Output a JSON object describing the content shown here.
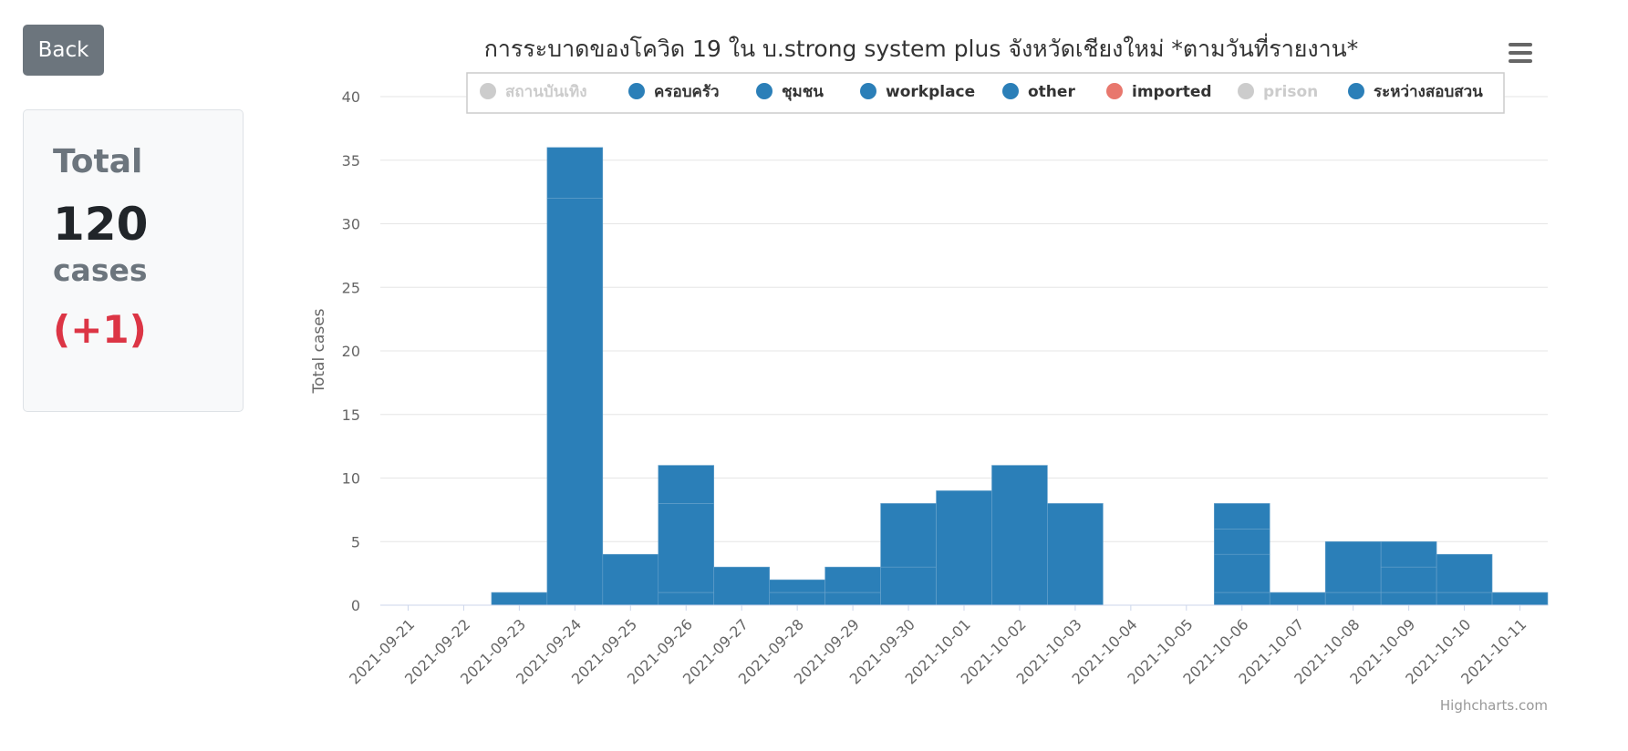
{
  "back_label": "Back",
  "summary": {
    "label": "Total",
    "count": "120",
    "unit": "cases",
    "delta": "(+1)"
  },
  "credit": "Highcharts.com",
  "chart_data": {
    "type": "bar",
    "stacked": true,
    "title": "การระบาดของโควิด 19 ใน บ.strong system plus จังหวัดเชียงใหม่ *ตามวันที่รายงาน*",
    "ylabel": "Total cases",
    "xlabel": "",
    "ylim": [
      0,
      40
    ],
    "yticks": [
      0,
      5,
      10,
      15,
      20,
      25,
      30,
      35,
      40
    ],
    "grid": true,
    "legend_position": "top",
    "bar_color": "#2b7fb8",
    "categories": [
      "2021-09-21",
      "2021-09-22",
      "2021-09-23",
      "2021-09-24",
      "2021-09-25",
      "2021-09-26",
      "2021-09-27",
      "2021-09-28",
      "2021-09-29",
      "2021-09-30",
      "2021-10-01",
      "2021-10-02",
      "2021-10-03",
      "2021-10-04",
      "2021-10-05",
      "2021-10-06",
      "2021-10-07",
      "2021-10-08",
      "2021-10-09",
      "2021-10-10",
      "2021-10-11"
    ],
    "legend": [
      {
        "name": "สถานบันเทิง",
        "color": "#cccccc",
        "visible": false
      },
      {
        "name": "ครอบครัว",
        "color": "#2b7fb8",
        "visible": true
      },
      {
        "name": "ชุมชน",
        "color": "#2b7fb8",
        "visible": true
      },
      {
        "name": "workplace",
        "color": "#2b7fb8",
        "visible": true
      },
      {
        "name": "other",
        "color": "#2b7fb8",
        "visible": true
      },
      {
        "name": "imported",
        "color": "#e8776d",
        "visible": true
      },
      {
        "name": "prison",
        "color": "#cccccc",
        "visible": false
      },
      {
        "name": "ระหว่างสอบสวน",
        "color": "#2b7fb8",
        "visible": true
      }
    ],
    "totals": [
      0,
      0,
      1,
      36,
      4,
      11,
      3,
      2,
      3,
      8,
      9,
      11,
      8,
      0,
      0,
      8,
      1,
      5,
      5,
      4,
      1
    ],
    "segments": [
      [],
      [],
      [
        1
      ],
      [
        32,
        4
      ],
      [
        4
      ],
      [
        1,
        7,
        3
      ],
      [
        3
      ],
      [
        1,
        1
      ],
      [
        1,
        2
      ],
      [
        3,
        5
      ],
      [
        9
      ],
      [
        11
      ],
      [
        8
      ],
      [],
      [],
      [
        1,
        3,
        2,
        2
      ],
      [
        1
      ],
      [
        1,
        4
      ],
      [
        1,
        2,
        2
      ],
      [
        1,
        3
      ],
      [
        1
      ]
    ]
  }
}
